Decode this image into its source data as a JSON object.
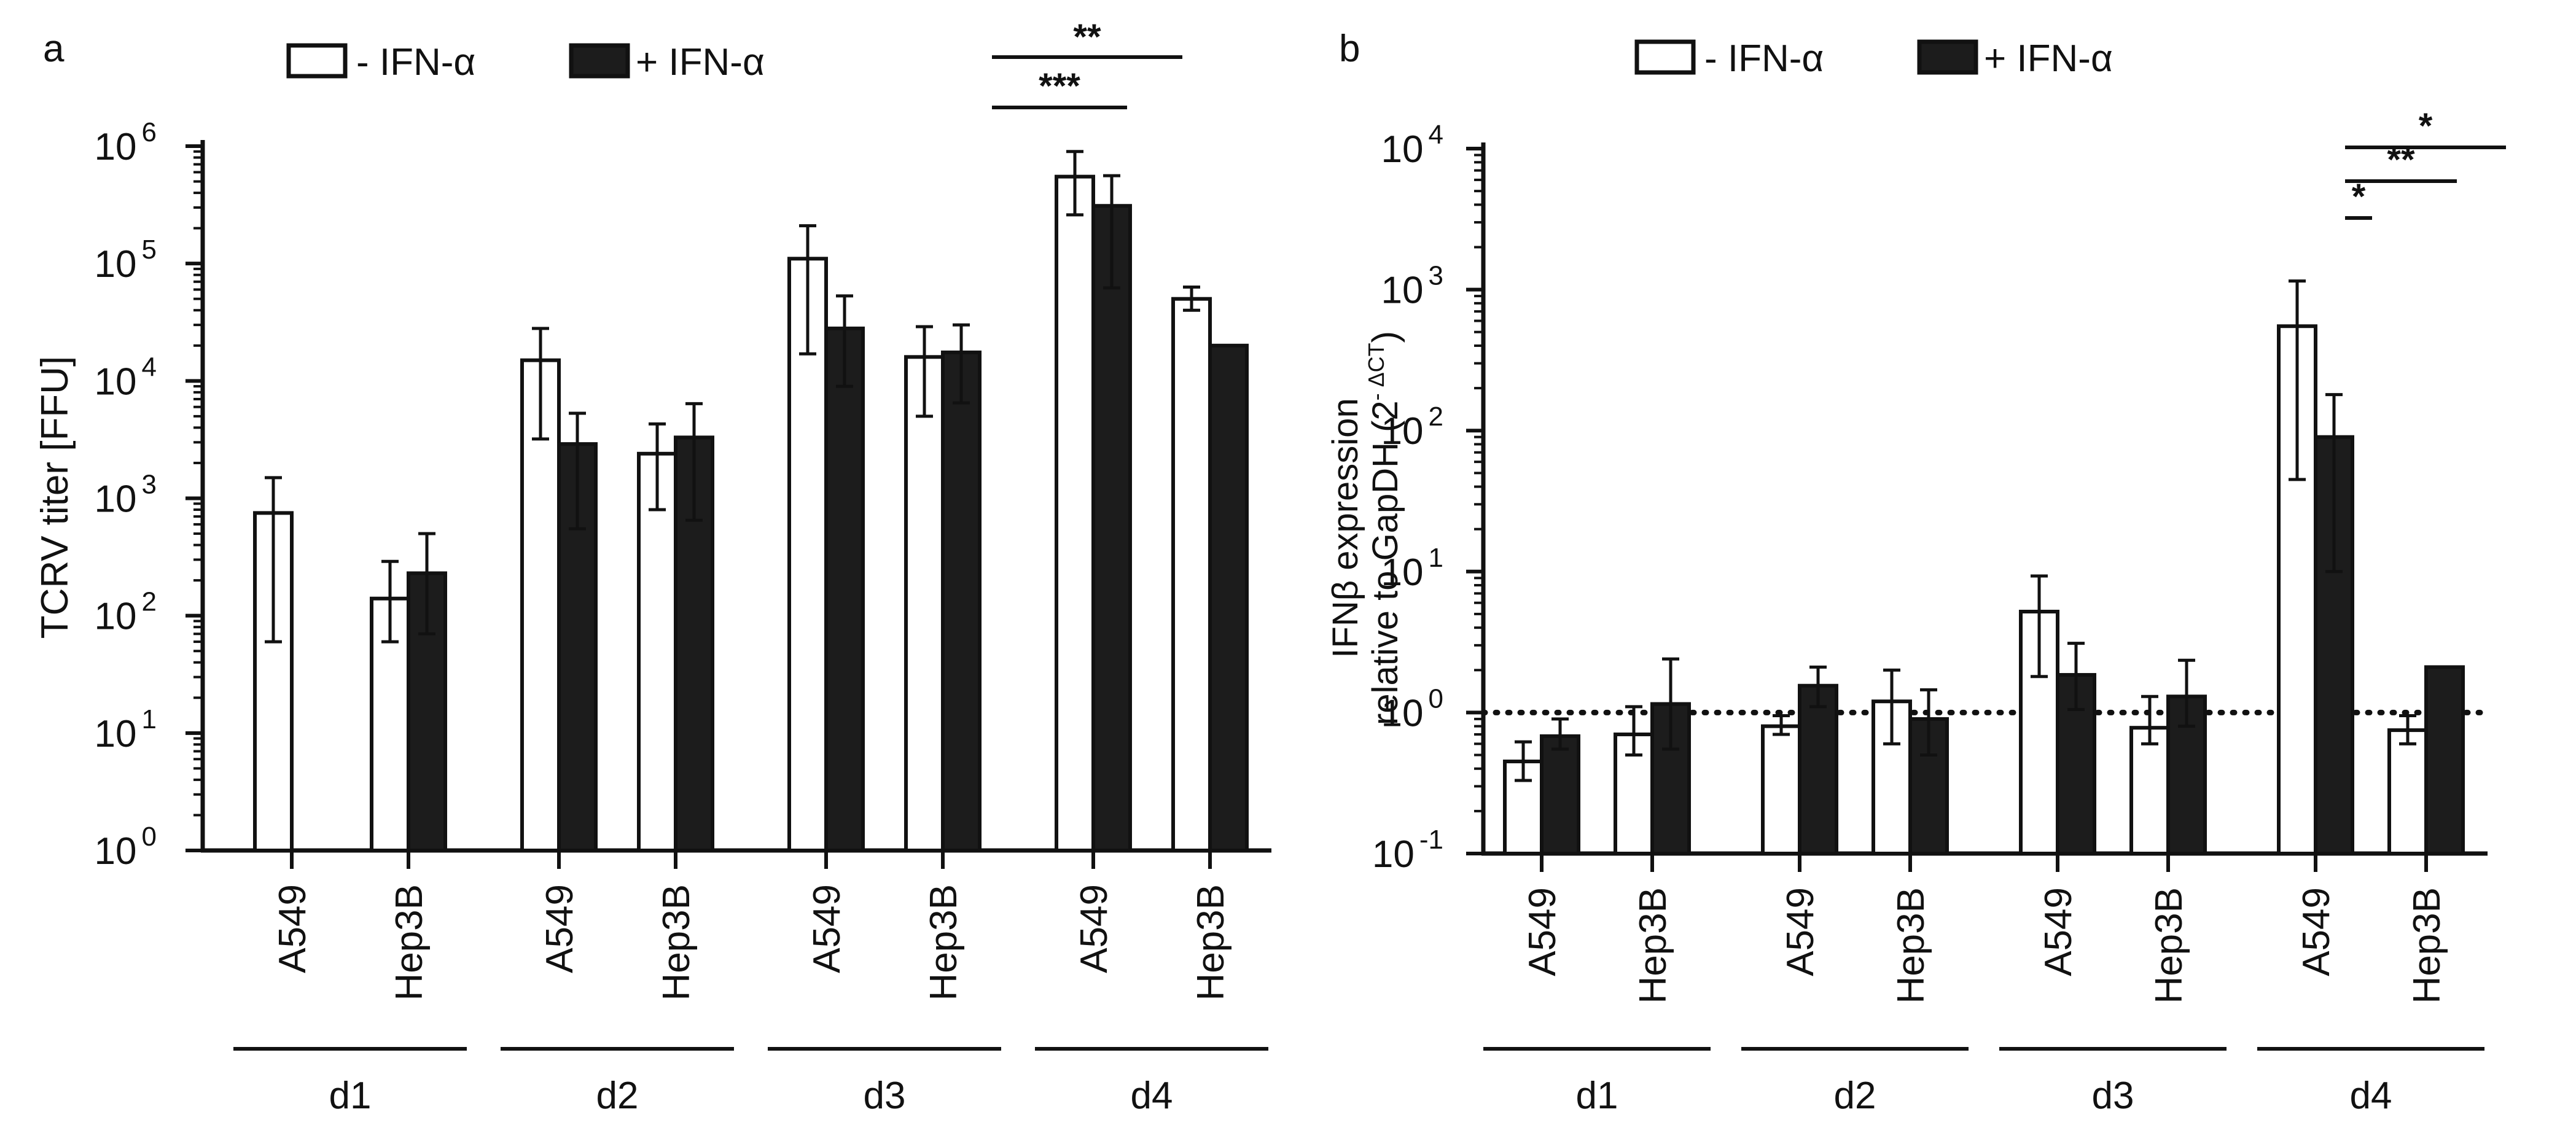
{
  "colors": {
    "ink": "#111111",
    "filled": "#1c1c1c",
    "open": "#ffffff"
  },
  "legend": {
    "minus_label": "- IFN-α",
    "plus_label": "+ IFN-α"
  },
  "chart_data": [
    {
      "panel": "a",
      "type": "bar",
      "yscale": "log10",
      "ylim": [
        1,
        1000000
      ],
      "ylabel": "TCRV  titer [FFU]",
      "ytick_base": "10",
      "yticks": [
        {
          "value": 1,
          "exp": "0"
        },
        {
          "value": 10,
          "exp": "1"
        },
        {
          "value": 100,
          "exp": "2"
        },
        {
          "value": 1000,
          "exp": "3"
        },
        {
          "value": 10000,
          "exp": "4"
        },
        {
          "value": 100000,
          "exp": "5"
        },
        {
          "value": 1000000,
          "exp": "6"
        }
      ],
      "days": [
        "d1",
        "d2",
        "d3",
        "d4"
      ],
      "cell_lines": [
        "A549",
        "Hep3B"
      ],
      "series": [
        {
          "name": "- IFN-α",
          "values": [
            750,
            140,
            15000,
            2400,
            110000,
            16000,
            550000,
            50000
          ],
          "err_low": [
            60,
            60,
            3200,
            800,
            17000,
            5000,
            260000,
            40000
          ],
          "err_high": [
            1500,
            290,
            28000,
            4300,
            210000,
            29000,
            900000,
            63000
          ]
        },
        {
          "name": "+ IFN-α",
          "values": [
            null,
            230,
            2900,
            3300,
            28000,
            17500,
            310000,
            20000
          ],
          "err_low": [
            null,
            70,
            550,
            650,
            9000,
            6500,
            62000,
            null
          ],
          "err_high": [
            null,
            500,
            5300,
            6400,
            53000,
            30000,
            560000,
            null
          ]
        }
      ],
      "significance": [
        {
          "label": "**",
          "from": "d4 A549",
          "to": "d4 Hep3B + IFN-α"
        },
        {
          "label": "***",
          "from": "d4 A549",
          "to": "d4 Hep3B - IFN-α"
        }
      ]
    },
    {
      "panel": "b",
      "type": "bar",
      "yscale": "log10",
      "ylim": [
        0.1,
        10000
      ],
      "ylabel_line1": "IFNβ expression",
      "ylabel_line2": "relative to GapDH (2",
      "ylabel_sup": "- ΔCT",
      "ylabel_close": ")",
      "ytick_base": "10",
      "yticks": [
        {
          "value": 0.1,
          "exp": "-1"
        },
        {
          "value": 1,
          "exp": "0"
        },
        {
          "value": 10,
          "exp": "1"
        },
        {
          "value": 100,
          "exp": "2"
        },
        {
          "value": 1000,
          "exp": "3"
        },
        {
          "value": 10000,
          "exp": "4"
        }
      ],
      "reference_line": 1,
      "days": [
        "d1",
        "d2",
        "d3",
        "d4"
      ],
      "cell_lines": [
        "A549",
        "Hep3B"
      ],
      "series": [
        {
          "name": "- IFN-α",
          "values": [
            0.45,
            0.7,
            0.8,
            1.2,
            5.2,
            0.78,
            550,
            0.75
          ],
          "err_low": [
            0.33,
            0.5,
            0.7,
            0.6,
            1.8,
            0.6,
            45,
            0.6
          ],
          "err_high": [
            0.62,
            1.1,
            0.95,
            2.0,
            9.3,
            1.3,
            1150,
            0.95
          ]
        },
        {
          "name": "+ IFN-α",
          "values": [
            0.68,
            1.15,
            1.55,
            0.9,
            1.85,
            1.3,
            90,
            2.1
          ],
          "err_low": [
            0.55,
            0.55,
            1.1,
            0.5,
            1.05,
            0.8,
            10,
            null
          ],
          "err_high": [
            0.9,
            2.4,
            2.1,
            1.45,
            3.1,
            2.35,
            180,
            null
          ]
        }
      ],
      "significance": [
        {
          "label": "*",
          "from": "d4 A549",
          "to": "d4 Hep3B + IFN-α"
        },
        {
          "label": "**",
          "from": "d4 A549",
          "to": "d4 Hep3B - IFN-α"
        },
        {
          "label": "*",
          "from": "d4 A549 - IFN-α",
          "to": "d4 A549 + IFN-α"
        }
      ]
    }
  ]
}
